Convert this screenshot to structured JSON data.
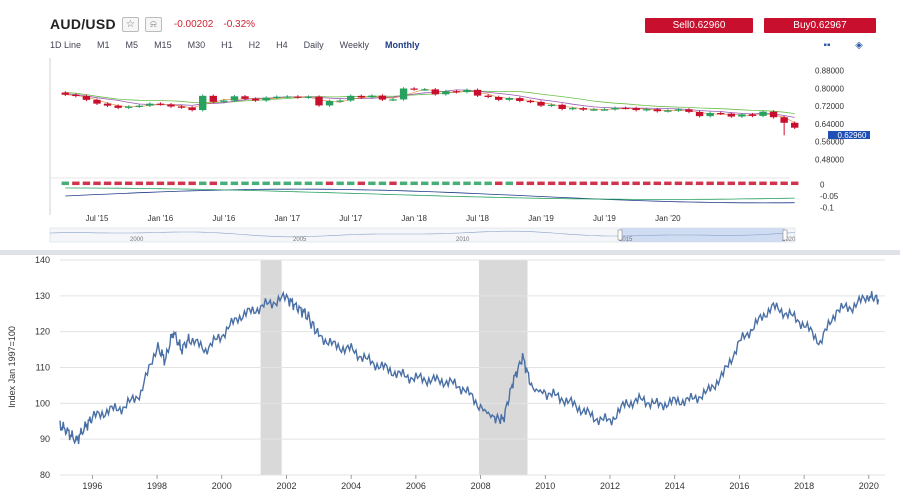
{
  "quote": {
    "symbol": "AUD/USD",
    "change": "-0.00202",
    "change_pct": "-0.32%",
    "sell_label": "Sell0.62960",
    "buy_label": "Buy0.62967",
    "current_price": "0.62960"
  },
  "timeframes": [
    "1D Line",
    "M1",
    "M5",
    "M15",
    "M30",
    "H1",
    "H2",
    "H4",
    "Daily",
    "Weekly",
    "Monthly"
  ],
  "active_timeframe": "Monthly",
  "colors": {
    "up": "#27a060",
    "down": "#c8102e",
    "accent": "#1f3c88",
    "line": "#4a6fa5",
    "recession": "#d9d9d9"
  },
  "chart_data": [
    {
      "type": "candlestick",
      "title": "AUD/USD",
      "x_tick_labels": [
        "Jul '15",
        "Jan '16",
        "Jul '16",
        "Jan '17",
        "Jul '17",
        "Jan '18",
        "Jul '18",
        "Jan '19",
        "Jul '19",
        "Jan '20"
      ],
      "y_tick_labels": [
        "0.88000",
        "0.80000",
        "0.72000",
        "0.64000",
        "0.56000",
        "0.48000"
      ],
      "ylim": [
        0.46,
        0.9
      ],
      "closes": [
        0.771,
        0.765,
        0.748,
        0.731,
        0.722,
        0.712,
        0.718,
        0.722,
        0.731,
        0.728,
        0.718,
        0.714,
        0.702,
        0.766,
        0.739,
        0.745,
        0.764,
        0.753,
        0.745,
        0.758,
        0.762,
        0.763,
        0.759,
        0.762,
        0.723,
        0.743,
        0.745,
        0.766,
        0.759,
        0.767,
        0.749,
        0.75,
        0.799,
        0.795,
        0.795,
        0.773,
        0.787,
        0.783,
        0.793,
        0.767,
        0.761,
        0.748,
        0.756,
        0.743,
        0.739,
        0.722,
        0.726,
        0.707,
        0.711,
        0.704,
        0.705,
        0.705,
        0.712,
        0.711,
        0.702,
        0.706,
        0.697,
        0.7,
        0.705,
        0.694,
        0.675,
        0.689,
        0.686,
        0.673,
        0.683,
        0.676,
        0.695,
        0.67,
        0.645,
        0.623
      ],
      "moving_averages": [
        "purple",
        "green",
        "red"
      ],
      "overlays": [
        {
          "name": "0",
          "value": 0
        },
        {
          "name": "-0.05",
          "value": -0.05
        },
        {
          "name": "-0.1",
          "value": -0.1
        }
      ],
      "navigator_labels": [
        "2000",
        "2005",
        "2010",
        "2015",
        "2020"
      ]
    },
    {
      "type": "line",
      "title": "",
      "xlabel": "",
      "ylabel": "Index Jan 1997=100",
      "xlim": [
        1995,
        2020.5
      ],
      "ylim": [
        80,
        140
      ],
      "x_ticks": [
        1996,
        1998,
        2000,
        2002,
        2004,
        2006,
        2008,
        2010,
        2012,
        2014,
        2016,
        2018,
        2020
      ],
      "y_ticks": [
        80,
        90,
        100,
        110,
        120,
        130,
        140
      ],
      "grid": true,
      "recessions": [
        [
          2001.2,
          2001.85
        ],
        [
          2007.95,
          2009.45
        ]
      ],
      "x": [
        1995.0,
        1995.25,
        1995.5,
        1995.75,
        1996.0,
        1996.5,
        1997.0,
        1997.5,
        1998.0,
        1998.25,
        1998.5,
        1998.75,
        1999.0,
        1999.5,
        2000.0,
        2000.5,
        2001.0,
        2001.5,
        2002.0,
        2002.3,
        2002.6,
        2003.0,
        2003.5,
        2004.0,
        2004.5,
        2005.0,
        2005.5,
        2006.0,
        2006.5,
        2007.0,
        2007.5,
        2008.0,
        2008.4,
        2008.7,
        2009.0,
        2009.3,
        2009.6,
        2010.0,
        2010.5,
        2011.0,
        2011.5,
        2012.0,
        2012.5,
        2013.0,
        2013.5,
        2014.0,
        2014.5,
        2015.0,
        2015.5,
        2016.0,
        2016.5,
        2017.0,
        2017.5,
        2018.0,
        2018.5,
        2019.0,
        2019.5,
        2020.0,
        2020.3
      ],
      "y": [
        94,
        92,
        89.5,
        93,
        96,
        98,
        99,
        103,
        116,
        112,
        120,
        115,
        118,
        115,
        119,
        124,
        126,
        128,
        129.5,
        127,
        125,
        119,
        116,
        115,
        112,
        110,
        108,
        107,
        106.5,
        106,
        104,
        99,
        96,
        95.5,
        106,
        113,
        104,
        103,
        101.5,
        99,
        96,
        95,
        100,
        101,
        99.5,
        100.5,
        101,
        103,
        108,
        117,
        122,
        127,
        125,
        122,
        117,
        126,
        127,
        130,
        129
      ]
    }
  ]
}
